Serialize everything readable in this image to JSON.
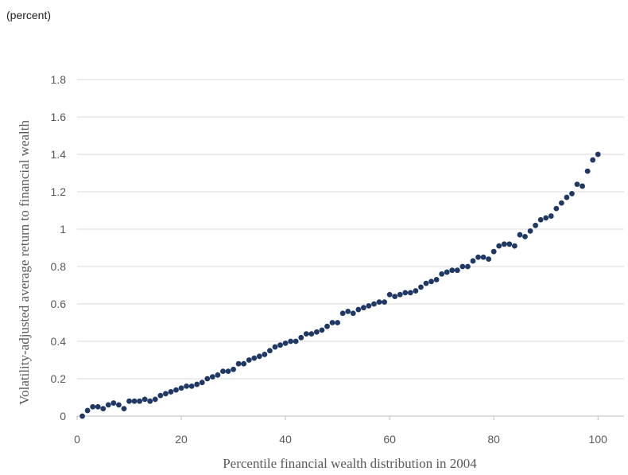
{
  "chart_data": {
    "type": "scatter",
    "note": "(percent)",
    "xlabel": "Percentile financial wealth distribution in 2004",
    "ylabel": "Volatility-adjusted average return to financial wealth",
    "x": [
      1,
      2,
      3,
      4,
      5,
      6,
      7,
      8,
      9,
      10,
      11,
      12,
      13,
      14,
      15,
      16,
      17,
      18,
      19,
      20,
      21,
      22,
      23,
      24,
      25,
      26,
      27,
      28,
      29,
      30,
      31,
      32,
      33,
      34,
      35,
      36,
      37,
      38,
      39,
      40,
      41,
      42,
      43,
      44,
      45,
      46,
      47,
      48,
      49,
      50,
      51,
      52,
      53,
      54,
      55,
      56,
      57,
      58,
      59,
      60,
      61,
      62,
      63,
      64,
      65,
      66,
      67,
      68,
      69,
      70,
      71,
      72,
      73,
      74,
      75,
      76,
      77,
      78,
      79,
      80,
      81,
      82,
      83,
      84,
      85,
      86,
      87,
      88,
      89,
      90,
      91,
      92,
      93,
      94,
      95,
      96,
      97,
      98,
      99,
      100
    ],
    "values": [
      0.0,
      0.03,
      0.05,
      0.05,
      0.04,
      0.06,
      0.07,
      0.06,
      0.04,
      0.08,
      0.08,
      0.08,
      0.09,
      0.08,
      0.09,
      0.11,
      0.12,
      0.13,
      0.14,
      0.15,
      0.16,
      0.16,
      0.17,
      0.18,
      0.2,
      0.21,
      0.22,
      0.24,
      0.24,
      0.25,
      0.28,
      0.28,
      0.3,
      0.31,
      0.32,
      0.33,
      0.35,
      0.37,
      0.38,
      0.39,
      0.4,
      0.4,
      0.42,
      0.44,
      0.44,
      0.45,
      0.46,
      0.48,
      0.5,
      0.5,
      0.55,
      0.56,
      0.55,
      0.57,
      0.58,
      0.59,
      0.6,
      0.61,
      0.61,
      0.65,
      0.64,
      0.65,
      0.66,
      0.66,
      0.67,
      0.69,
      0.71,
      0.72,
      0.73,
      0.76,
      0.77,
      0.78,
      0.78,
      0.8,
      0.8,
      0.83,
      0.85,
      0.85,
      0.84,
      0.88,
      0.91,
      0.92,
      0.92,
      0.91,
      0.97,
      0.96,
      0.99,
      1.02,
      1.05,
      1.06,
      1.07,
      1.11,
      1.14,
      1.17,
      1.19,
      1.24,
      1.23,
      1.31,
      1.37,
      1.4
    ],
    "color": "#1f3864",
    "xlim": [
      0,
      105
    ],
    "xticks": [
      0,
      20,
      40,
      60,
      80,
      100
    ],
    "ylim": [
      0,
      1.8
    ],
    "yticks": [
      0,
      0.2,
      0.4,
      0.6,
      0.8,
      1,
      1.2,
      1.4,
      1.6,
      1.8
    ],
    "grid": true
  }
}
